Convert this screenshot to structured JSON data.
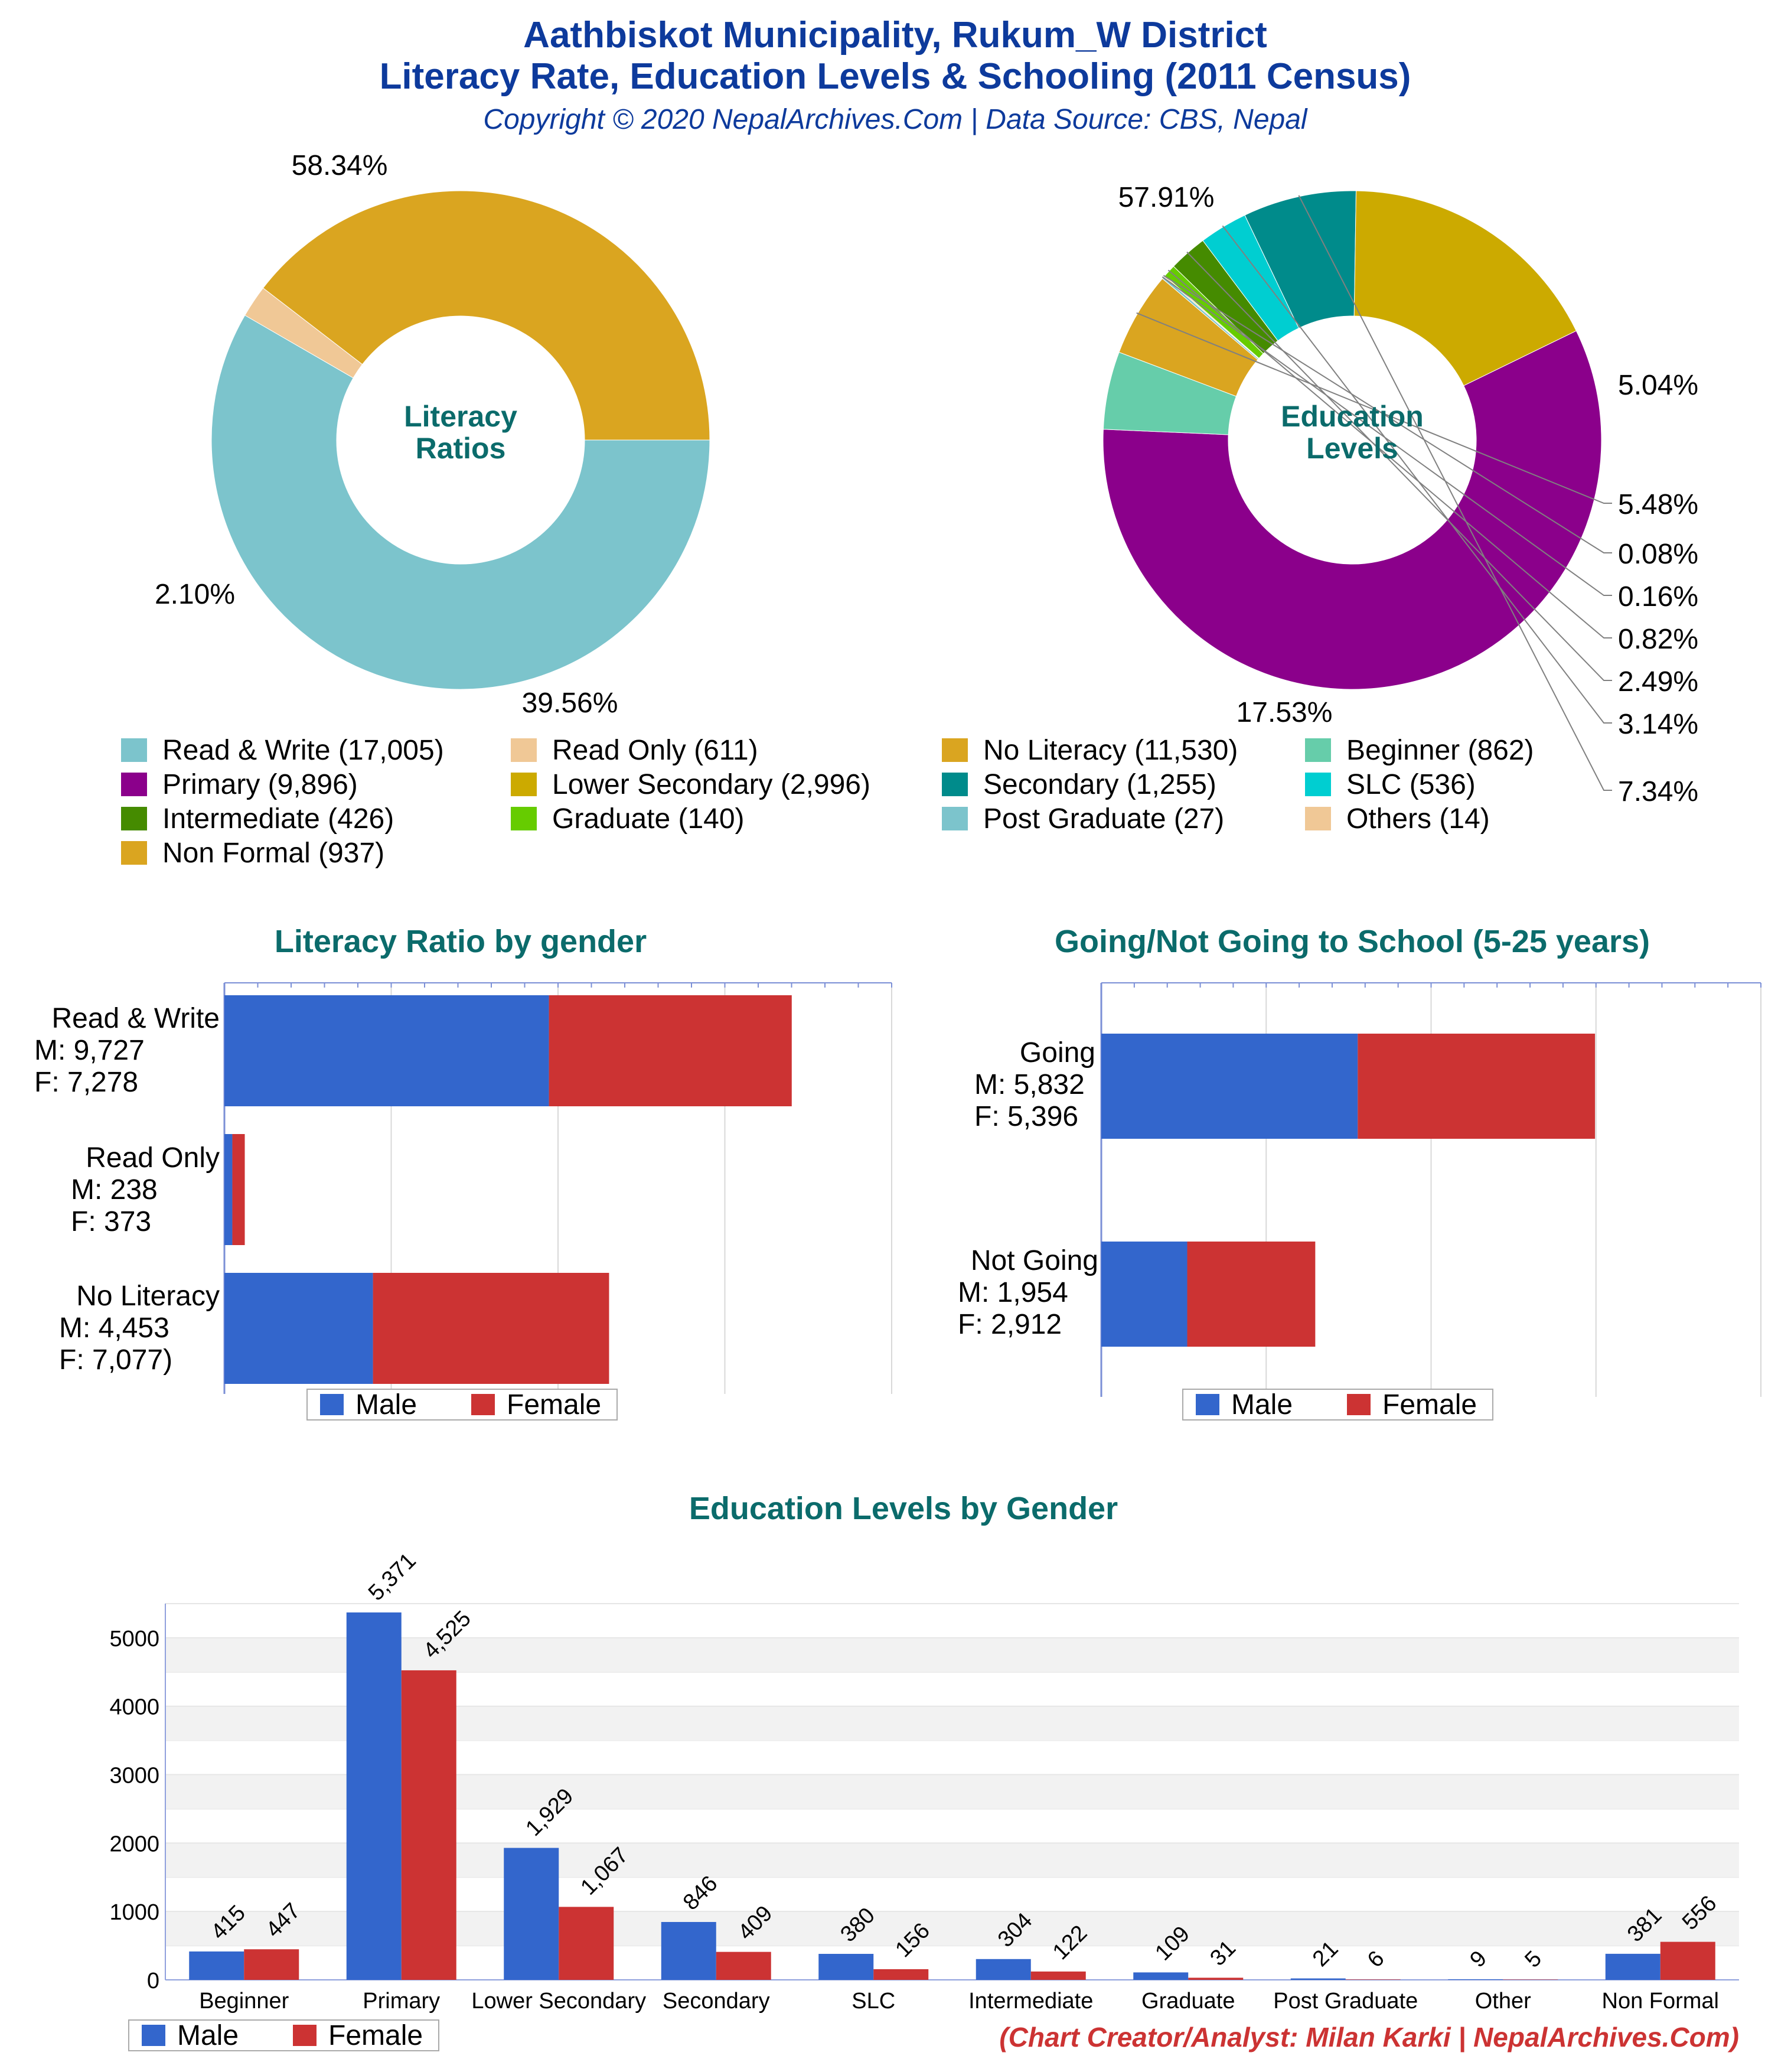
{
  "header": {
    "title_line1": "Aathbiskot Municipality, Rukum_W District",
    "title_line2": "Literacy Rate, Education Levels & Schooling (2011 Census)",
    "subtitle": "Copyright © 2020 NepalArchives.Com | Data Source: CBS, Nepal"
  },
  "colors": {
    "male": "#3366cc",
    "female": "#cc3333",
    "title": "#0d3a9c",
    "section": "#0b6b6b"
  },
  "chart_data": [
    {
      "type": "pie",
      "center_label_line1": "Literacy",
      "center_label_line2": "Ratios",
      "slices": [
        {
          "label": "Read & Write",
          "value": 17005,
          "percent_label": "58.34%",
          "color": "#7cc4cc"
        },
        {
          "label": "Read Only",
          "value": 611,
          "percent_label": "2.10%",
          "color": "#f0c896"
        },
        {
          "label": "No Literacy",
          "value": 11530,
          "percent_label": "39.56%",
          "color": "#daa520"
        }
      ]
    },
    {
      "type": "pie",
      "center_label_line1": "Education",
      "center_label_line2": "Levels",
      "slices": [
        {
          "label": "Primary",
          "value": 9896,
          "percent_label": "57.91%",
          "color": "#8b008b"
        },
        {
          "label": "Beginner",
          "value": 862,
          "percent_label": "5.04%",
          "color": "#66cdaa"
        },
        {
          "label": "Non Formal",
          "value": 937,
          "percent_label": "5.48%",
          "color": "#daa520"
        },
        {
          "label": "Post Graduate",
          "value": 27,
          "percent_label": "0.16%",
          "color": "#7cc4cc"
        },
        {
          "label": "Others",
          "value": 14,
          "percent_label": "0.08%",
          "color": "#f0c896"
        },
        {
          "label": "Graduate",
          "value": 140,
          "percent_label": "0.82%",
          "color": "#66cc00"
        },
        {
          "label": "Intermediate",
          "value": 426,
          "percent_label": "2.49%",
          "color": "#458b00"
        },
        {
          "label": "SLC",
          "value": 536,
          "percent_label": "3.14%",
          "color": "#00ced1"
        },
        {
          "label": "Secondary",
          "value": 1255,
          "percent_label": "7.34%",
          "color": "#008b8b"
        },
        {
          "label": "Lower Secondary",
          "value": 2996,
          "percent_label": "17.53%",
          "color": "#ccaa00"
        }
      ],
      "right_labels": [
        "5.48%",
        "0.08%",
        "0.16%",
        "0.82%",
        "2.49%",
        "3.14%",
        "7.34%"
      ]
    },
    {
      "type": "bar",
      "orientation": "horizontal",
      "stacked": true,
      "title": "Literacy Ratio by gender",
      "xlim": [
        0,
        20000
      ],
      "legend": [
        "Male",
        "Female"
      ],
      "legend_position": "bottom",
      "categories": [
        {
          "name": "Read & Write",
          "m_text": "M: 9,727",
          "f_text": "F: 7,278",
          "male": 9727,
          "female": 7278
        },
        {
          "name": "Read Only",
          "m_text": "M: 238",
          "f_text": "F: 373",
          "male": 238,
          "female": 373
        },
        {
          "name": "No Literacy",
          "m_text": "M: 4,453",
          "f_text": "F: 7,077)",
          "male": 4453,
          "female": 7077
        }
      ]
    },
    {
      "type": "bar",
      "orientation": "horizontal",
      "stacked": true,
      "title": "Going/Not Going to School (5-25 years)",
      "xlim": [
        0,
        15000
      ],
      "legend": [
        "Male",
        "Female"
      ],
      "legend_position": "bottom",
      "categories": [
        {
          "name": "Going",
          "m_text": "M: 5,832",
          "f_text": "F: 5,396",
          "male": 5832,
          "female": 5396
        },
        {
          "name": "Not Going",
          "m_text": "M: 1,954",
          "f_text": "F: 2,912",
          "male": 1954,
          "female": 2912
        }
      ]
    },
    {
      "type": "bar",
      "orientation": "vertical",
      "title": "Education Levels by Gender",
      "ylim": [
        0,
        5500
      ],
      "yticks": [
        0,
        1000,
        2000,
        3000,
        4000,
        5000
      ],
      "legend": [
        "Male",
        "Female"
      ],
      "legend_position": "bottom-left",
      "categories": [
        "Beginner",
        "Primary",
        "Lower Secondary",
        "Secondary",
        "SLC",
        "Intermediate",
        "Graduate",
        "Post Graduate",
        "Other",
        "Non Formal"
      ],
      "series": [
        {
          "name": "Male",
          "values": [
            415,
            5371,
            1929,
            846,
            380,
            304,
            109,
            21,
            9,
            381
          ],
          "labels": [
            "415",
            "5,371",
            "1,929",
            "846",
            "380",
            "304",
            "109",
            "21",
            "9",
            "381"
          ]
        },
        {
          "name": "Female",
          "values": [
            447,
            4525,
            1067,
            409,
            156,
            122,
            31,
            6,
            5,
            556
          ],
          "labels": [
            "447",
            "4,525",
            "1,067",
            "409",
            "156",
            "122",
            "31",
            "6",
            "5",
            "556"
          ]
        }
      ]
    }
  ],
  "pie_legend": [
    {
      "label": "Read & Write (17,005)",
      "color": "#7cc4cc"
    },
    {
      "label": "Read Only (611)",
      "color": "#f0c896"
    },
    {
      "label": "No Literacy (11,530)",
      "color": "#daa520"
    },
    {
      "label": "Beginner (862)",
      "color": "#66cdaa"
    },
    {
      "label": "Primary (9,896)",
      "color": "#8b008b"
    },
    {
      "label": "Lower Secondary (2,996)",
      "color": "#ccaa00"
    },
    {
      "label": "Secondary (1,255)",
      "color": "#008b8b"
    },
    {
      "label": "SLC (536)",
      "color": "#00ced1"
    },
    {
      "label": "Intermediate (426)",
      "color": "#458b00"
    },
    {
      "label": "Graduate (140)",
      "color": "#66cc00"
    },
    {
      "label": "Post Graduate (27)",
      "color": "#7cc4cc"
    },
    {
      "label": "Others (14)",
      "color": "#f0c896"
    },
    {
      "label": "Non Formal (937)",
      "color": "#daa520"
    }
  ],
  "footer": {
    "credit": "(Chart Creator/Analyst: Milan Karki | NepalArchives.Com)"
  }
}
